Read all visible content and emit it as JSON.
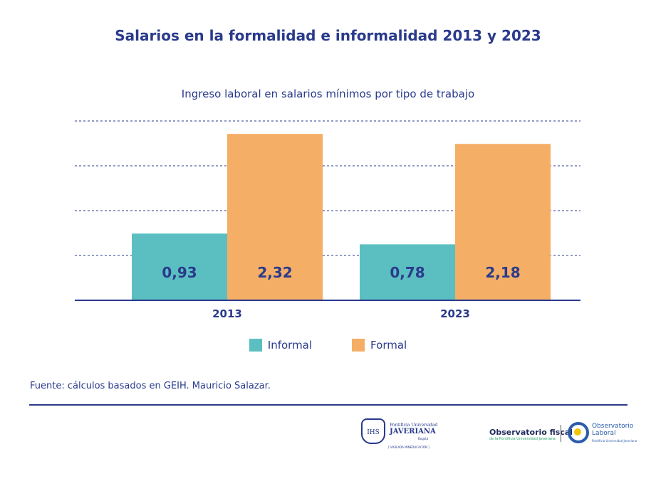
{
  "title": "Salarios en la formalidad e informalidad 2013 y 2023",
  "source": "Fuente: cálculos basados en GEIH. Mauricio Salazar.",
  "colors": {
    "informal": "#5bbfc1",
    "formal": "#f5ae66",
    "text": "#2a3a8c"
  },
  "logos": {
    "javeriana": {
      "line1": "Pontificia Universidad",
      "line2": "JAVERIANA",
      "line3": "Bogotá",
      "line4": "[ VIGILADA MINEDUCACIÓN ]",
      "crest": "IHS"
    },
    "observatorio_fiscal": {
      "line1": "Observatorio fiscal",
      "line2": "de la Pontificia Universidad Javeriana"
    },
    "observatorio_laboral": {
      "line1": "Observatorio",
      "line2": "Laboral",
      "line3": "Pontificia Universidad Javeriana"
    }
  },
  "chart_data": {
    "type": "bar",
    "title": "Ingreso laboral en salarios mínimos por tipo de trabajo",
    "categories": [
      "2013",
      "2023"
    ],
    "series": [
      {
        "name": "Informal",
        "values": [
          0.93,
          0.78
        ],
        "labels": [
          "0,93",
          "0,78"
        ]
      },
      {
        "name": "Formal",
        "values": [
          2.32,
          2.18
        ],
        "labels": [
          "2,32",
          "2,18"
        ]
      }
    ],
    "ylim": [
      0,
      2.5
    ],
    "grid": true,
    "gridlines": [
      0.625,
      1.25,
      1.875,
      2.5
    ],
    "legend": "bottom"
  }
}
